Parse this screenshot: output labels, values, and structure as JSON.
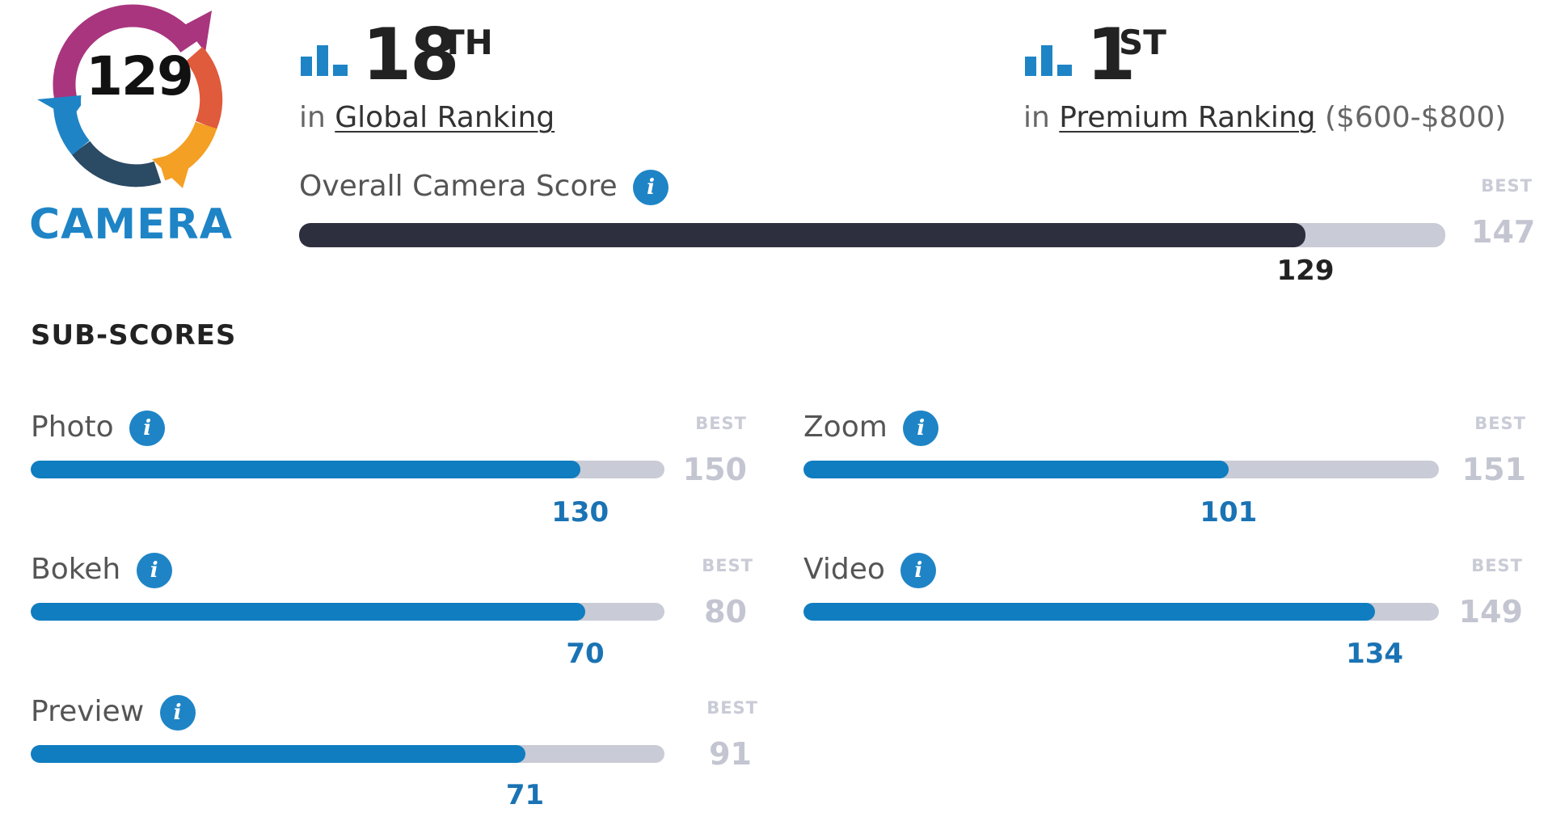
{
  "badge": {
    "score": "129",
    "label": "CAMERA"
  },
  "global_rank": {
    "number": "18",
    "suffix": "TH",
    "prefix": "in",
    "link": "Global Ranking"
  },
  "premium_rank": {
    "number": "1",
    "suffix": "ST",
    "prefix": "in",
    "link": "Premium Ranking",
    "range": "($600-$800)"
  },
  "overall": {
    "label": "Overall Camera Score",
    "score": "129",
    "best_caption": "BEST",
    "best": "147",
    "fraction": 0.878
  },
  "sub_scores_title": "SUB-SCORES",
  "photo": {
    "label": "Photo",
    "score": "130",
    "best_caption": "BEST",
    "best": "150",
    "fraction": 0.867
  },
  "zoom": {
    "label": "Zoom",
    "score": "101",
    "best_caption": "BEST",
    "best": "151",
    "fraction": 0.669
  },
  "bokeh": {
    "label": "Bokeh",
    "score": "70",
    "best_caption": "BEST",
    "best": "80",
    "fraction": 0.875
  },
  "video": {
    "label": "Video",
    "score": "134",
    "best_caption": "BEST",
    "best": "149",
    "fraction": 0.899
  },
  "preview": {
    "label": "Preview",
    "score": "71",
    "best_caption": "BEST",
    "best": "91",
    "fraction": 0.78
  },
  "colors": {
    "accent": "#1e84c6",
    "bar_dark": "#2d2f3e",
    "bar_blue": "#0f7dc0",
    "track": "#c9cbd6"
  },
  "icons": {
    "rank": "bar-chart-icon",
    "info": "info-icon"
  }
}
